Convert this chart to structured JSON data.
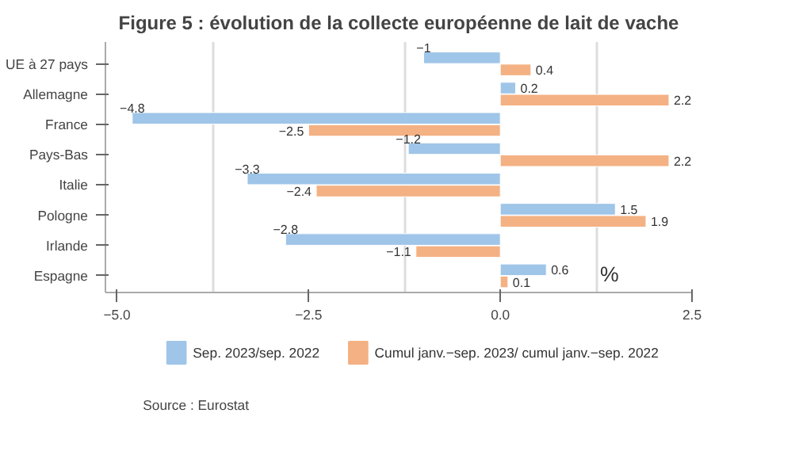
{
  "chart_data": {
    "type": "bar",
    "orientation": "horizontal",
    "title": "Figure 5 : évolution de la collecte européenne de lait de vache",
    "categories": [
      "UE à 27 pays",
      "Allemagne",
      "France",
      "Pays-Bas",
      "Italie",
      "Pologne",
      "Irlande",
      "Espagne"
    ],
    "series": [
      {
        "name": "Sep. 2023/sep. 2022",
        "color": "#9fc5e8",
        "values": [
          -1,
          0.2,
          -4.8,
          -1.2,
          -3.3,
          1.5,
          -2.8,
          0.6
        ]
      },
      {
        "name": "Cumul janv.−sep. 2023/ cumul janv.−sep. 2022",
        "color": "#f4b183",
        "values": [
          0.4,
          2.2,
          -2.5,
          2.2,
          -2.4,
          1.9,
          -1.1,
          0.1
        ]
      }
    ],
    "xlim": [
      -5.15,
      2.5
    ],
    "xticks": [
      {
        "value": -5,
        "label": "−5.0"
      },
      {
        "value": -3.75,
        "label": null
      },
      {
        "value": -2.5,
        "label": "−2.5"
      },
      {
        "value": -1.25,
        "label": null
      },
      {
        "value": 0,
        "label": "0.0"
      },
      {
        "value": 1.25,
        "label": null
      },
      {
        "value": 2.5,
        "label": "2.5"
      }
    ],
    "grid": "x",
    "legend": "bottom",
    "data_labels": true,
    "annotations": [
      "%",
      "Source : Eurostat"
    ]
  }
}
